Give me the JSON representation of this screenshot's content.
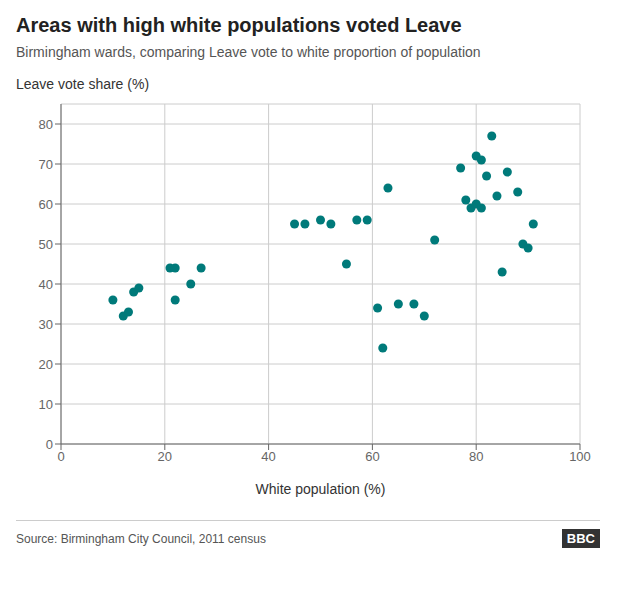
{
  "chart_data": {
    "type": "scatter",
    "title": "Areas with high white populations voted Leave",
    "subtitle": "Birmingham wards, comparing Leave vote to white proportion of population",
    "ylabel": "Leave vote share (%)",
    "xlabel": "White population (%)",
    "source": "Source: Birmingham City Council, 2011 census",
    "annotations": [
      "BBC"
    ],
    "color": "#007a7a",
    "xlim": [
      0,
      100
    ],
    "ylim": [
      0,
      85
    ],
    "xticks": [
      0,
      20,
      40,
      60,
      80,
      100
    ],
    "yticks": [
      0,
      10,
      20,
      30,
      40,
      50,
      60,
      70,
      80
    ],
    "grid": true,
    "x": [
      10,
      12,
      13,
      14,
      15,
      21,
      22,
      22,
      25,
      27,
      45,
      47,
      50,
      52,
      55,
      57,
      59,
      61,
      62,
      63,
      65,
      68,
      70,
      72,
      77,
      78,
      79,
      80,
      80,
      81,
      81,
      82,
      83,
      84,
      85,
      86,
      88,
      89,
      90,
      91
    ],
    "values": [
      36,
      32,
      33,
      38,
      39,
      44,
      44,
      36,
      40,
      44,
      55,
      55,
      56,
      55,
      45,
      56,
      56,
      34,
      24,
      64,
      35,
      35,
      32,
      51,
      69,
      61,
      59,
      72,
      60,
      71,
      59,
      67,
      77,
      62,
      43,
      68,
      63,
      50,
      49,
      55
    ]
  }
}
